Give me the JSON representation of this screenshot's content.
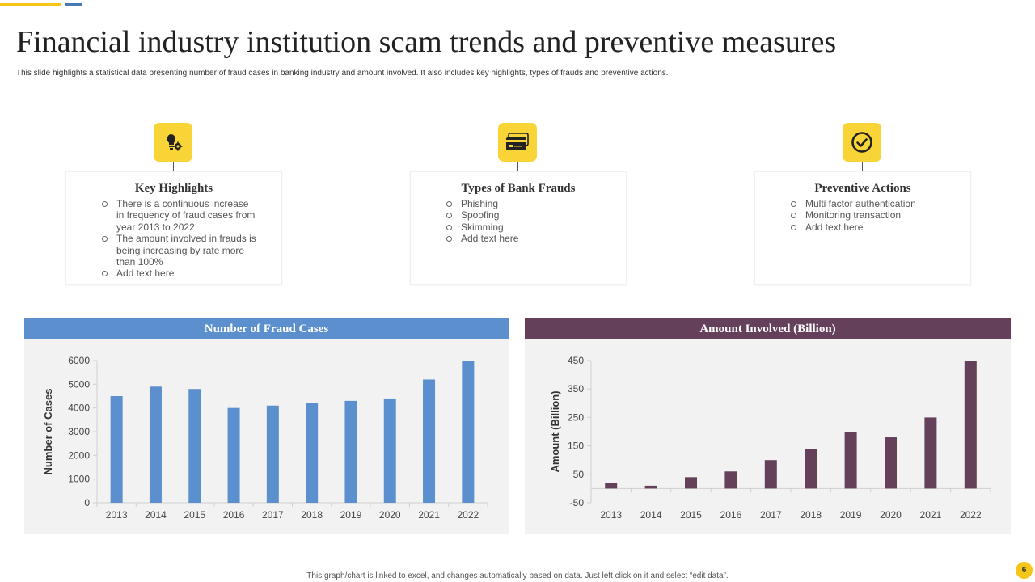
{
  "slide": {
    "title": "Financial industry institution scam trends and preventive measures",
    "subtitle": "This slide highlights a statistical data presenting number of fraud cases in banking industry and amount involved. It also includes key highlights, types of frauds and preventive actions.",
    "footer": "This graph/chart is linked to excel, and changes automatically based on data. Just left click on it and select “edit data”.",
    "page_number": "6",
    "accent_color": "#f9d437"
  },
  "cards": [
    {
      "title": "Key Highlights",
      "icon": "lightbulb-gear-icon",
      "items": [
        "There is a continuous increase in frequency of fraud cases from year 2013 to 2022",
        "The amount involved in frauds is being increasing by rate more than 100%",
        "Add text here"
      ]
    },
    {
      "title": "Types of Bank Frauds",
      "icon": "credit-card-icon",
      "items": [
        "Phishing",
        "Spoofing",
        "Skimming",
        "Add text here"
      ]
    },
    {
      "title": "Preventive Actions",
      "icon": "checkmark-circle-icon",
      "items": [
        "Multi factor authentication",
        "Monitoring transaction",
        "Add text here"
      ]
    }
  ],
  "chart_data": [
    {
      "type": "bar",
      "title": "Number of Fraud Cases",
      "categories": [
        "2013",
        "2014",
        "2015",
        "2016",
        "2017",
        "2018",
        "2019",
        "2020",
        "2021",
        "2022"
      ],
      "values": [
        4500,
        4900,
        4800,
        4000,
        4100,
        4200,
        4300,
        4400,
        5200,
        6000
      ],
      "xlabel": "",
      "ylabel": "Number of Cases",
      "ylim": [
        0,
        6000
      ],
      "yticks": [
        0,
        1000,
        2000,
        3000,
        4000,
        5000,
        6000
      ],
      "color": "#5b8fce",
      "header_color": "#5b8fce",
      "grid": false
    },
    {
      "type": "bar",
      "title": "Amount Involved (Billion)",
      "categories": [
        "2013",
        "2014",
        "2015",
        "2016",
        "2017",
        "2018",
        "2019",
        "2020",
        "2021",
        "2022"
      ],
      "values": [
        20,
        10,
        40,
        60,
        100,
        140,
        200,
        180,
        250,
        450
      ],
      "xlabel": "",
      "ylabel": "Amount (Billion)",
      "ylim": [
        -50,
        450
      ],
      "yticks": [
        -50,
        50,
        150,
        250,
        350,
        450
      ],
      "color": "#65405a",
      "header_color": "#65405a",
      "grid": false
    }
  ]
}
